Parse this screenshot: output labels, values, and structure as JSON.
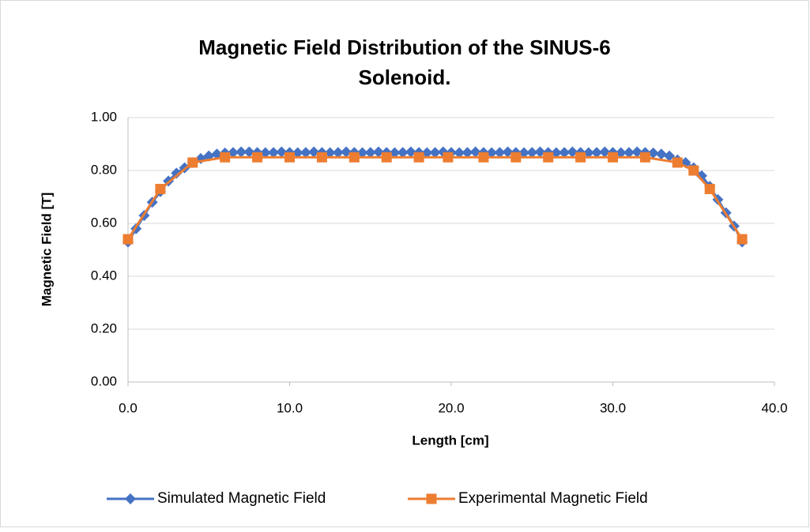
{
  "chart_data": {
    "type": "scatter-line",
    "title": "Magnetic Field Distribution of the SINUS-6 Solenoid.",
    "x_label": "Length [cm]",
    "y_label": "Magnetic Field [T]",
    "xlim": [
      0,
      40
    ],
    "ylim": [
      0,
      1
    ],
    "xticks": [
      {
        "value": 0,
        "label": "0.0"
      },
      {
        "value": 10,
        "label": "10.0"
      },
      {
        "value": 20,
        "label": "20.0"
      },
      {
        "value": 30,
        "label": "30.0"
      },
      {
        "value": 40,
        "label": "40.0"
      }
    ],
    "yticks": [
      {
        "value": 0,
        "label": "0.00"
      },
      {
        "value": 0.2,
        "label": "0.20"
      },
      {
        "value": 0.4,
        "label": "0.40"
      },
      {
        "value": 0.6,
        "label": "0.60"
      },
      {
        "value": 0.8,
        "label": "0.80"
      },
      {
        "value": 1,
        "label": "1.00"
      }
    ],
    "grid": true,
    "legend": "bottom",
    "series": [
      {
        "name": "Simulated Magnetic Field",
        "color": "#4472c4",
        "marker": "diamond",
        "x": [
          0,
          0.5,
          1,
          1.5,
          2,
          2.5,
          3,
          3.5,
          4,
          4.5,
          5,
          5.5,
          6,
          6.5,
          7,
          7.5,
          8,
          8.5,
          9,
          9.5,
          10,
          10.5,
          11,
          11.5,
          12,
          12.5,
          13,
          13.5,
          14,
          14.5,
          15,
          15.5,
          16,
          16.5,
          17,
          17.5,
          18,
          18.5,
          19,
          19.5,
          20,
          20.5,
          21,
          21.5,
          22,
          22.5,
          23,
          23.5,
          24,
          24.5,
          25,
          25.5,
          26,
          26.5,
          27,
          27.5,
          28,
          28.5,
          29,
          29.5,
          30,
          30.5,
          31,
          31.5,
          32,
          32.5,
          33,
          33.5,
          34,
          34.5,
          35,
          35.5,
          36,
          36.5,
          37,
          37.5,
          38
        ],
        "values": [
          0.53,
          0.58,
          0.63,
          0.68,
          0.72,
          0.76,
          0.79,
          0.81,
          0.83,
          0.845,
          0.855,
          0.862,
          0.866,
          0.868,
          0.87,
          0.87,
          0.868,
          0.867,
          0.868,
          0.87,
          0.868,
          0.867,
          0.868,
          0.87,
          0.868,
          0.867,
          0.868,
          0.87,
          0.868,
          0.867,
          0.868,
          0.87,
          0.868,
          0.867,
          0.868,
          0.87,
          0.868,
          0.867,
          0.868,
          0.87,
          0.868,
          0.867,
          0.868,
          0.87,
          0.868,
          0.867,
          0.868,
          0.87,
          0.868,
          0.867,
          0.868,
          0.87,
          0.868,
          0.867,
          0.868,
          0.87,
          0.868,
          0.867,
          0.868,
          0.87,
          0.868,
          0.867,
          0.868,
          0.87,
          0.868,
          0.866,
          0.862,
          0.855,
          0.84,
          0.83,
          0.81,
          0.78,
          0.74,
          0.69,
          0.64,
          0.59,
          0.53
        ]
      },
      {
        "name": "Experimental Magnetic Field",
        "color": "#ed7d31",
        "marker": "square",
        "x": [
          0,
          2,
          4,
          6,
          8,
          10,
          12,
          14,
          16,
          18,
          19.8,
          22,
          24,
          26,
          28,
          30,
          32,
          34,
          35,
          36,
          38
        ],
        "values": [
          0.54,
          0.73,
          0.83,
          0.85,
          0.85,
          0.85,
          0.85,
          0.85,
          0.85,
          0.85,
          0.85,
          0.85,
          0.85,
          0.85,
          0.85,
          0.85,
          0.85,
          0.83,
          0.8,
          0.73,
          0.54
        ]
      }
    ]
  }
}
